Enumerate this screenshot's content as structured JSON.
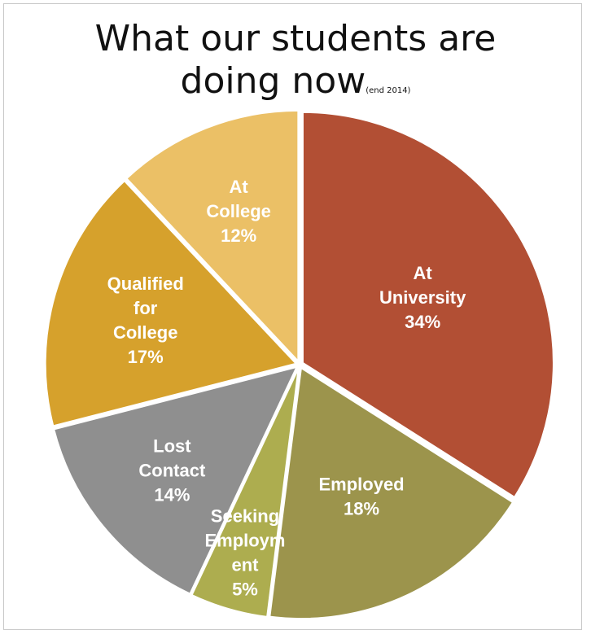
{
  "title": {
    "line1": "What our students are",
    "line2": "doing now",
    "subscript": "(end 2014)"
  },
  "chart_data": {
    "type": "pie",
    "title": "What our students are doing now (end 2014)",
    "start_angle_deg": 0,
    "direction": "clockwise",
    "slices": [
      {
        "name": "At University",
        "value": 34,
        "label_lines": [
          "At",
          "University",
          "34%"
        ],
        "color": "#B24F34"
      },
      {
        "name": "Employed",
        "value": 18,
        "label_lines": [
          "Employed",
          "18%"
        ],
        "color": "#9C944C"
      },
      {
        "name": "Seeking Employment",
        "value": 5,
        "label_lines": [
          "Seeking",
          "Employm",
          "ent",
          "5%"
        ],
        "color": "#ADAD4F"
      },
      {
        "name": "Lost Contact",
        "value": 14,
        "label_lines": [
          "Lost",
          "Contact",
          "14%"
        ],
        "color": "#8F8F8F"
      },
      {
        "name": "Qualified for College",
        "value": 17,
        "label_lines": [
          "Qualified",
          "for",
          "College",
          "17%"
        ],
        "color": "#D6A12C"
      },
      {
        "name": "At College",
        "value": 12,
        "label_lines": [
          "At",
          "College",
          "12%"
        ],
        "color": "#EBC066"
      }
    ]
  }
}
